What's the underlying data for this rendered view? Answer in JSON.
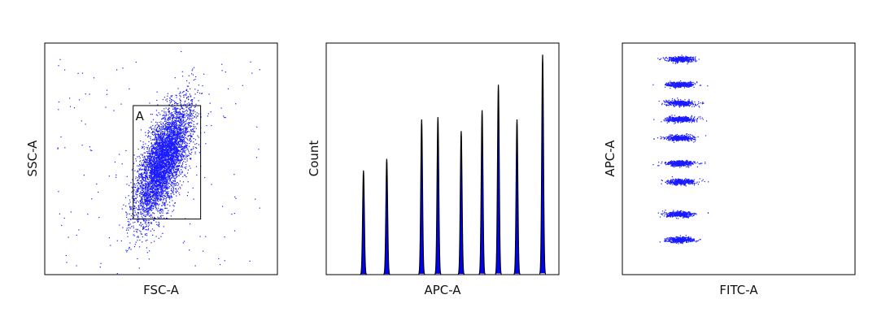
{
  "chart_data": [
    {
      "type": "scatter",
      "panel": "scatter-fsc-ssc",
      "xlabel": "FSC-A",
      "ylabel": "SSC-A",
      "title": "",
      "xlim": [
        0,
        100
      ],
      "ylim": [
        0,
        100
      ],
      "ticks": false,
      "colors": {
        "points": "#1a1aff",
        "gate": "#000000"
      },
      "population": {
        "center": [
          51,
          49
        ],
        "spread": [
          7.5,
          13
        ],
        "angle_deg": 70,
        "count": 5200
      },
      "background_events": 140,
      "gate": {
        "label": "A",
        "x": [
          38,
          67
        ],
        "y": [
          24,
          73
        ]
      }
    },
    {
      "type": "area",
      "panel": "histogram-apc",
      "xlabel": "APC-A",
      "ylabel": "Count",
      "title": "",
      "xlim": [
        0,
        100
      ],
      "ylim": [
        0,
        100
      ],
      "ticks": false,
      "colors": {
        "fill": "#0000ff",
        "outline": "#000000"
      },
      "peaks": [
        {
          "x": 16,
          "height": 45,
          "width": 0.45
        },
        {
          "x": 26,
          "height": 50,
          "width": 0.45
        },
        {
          "x": 41,
          "height": 67,
          "width": 0.45
        },
        {
          "x": 48,
          "height": 68,
          "width": 0.45
        },
        {
          "x": 58,
          "height": 62,
          "width": 0.45
        },
        {
          "x": 67,
          "height": 71,
          "width": 0.45
        },
        {
          "x": 74,
          "height": 82,
          "width": 0.45
        },
        {
          "x": 82,
          "height": 67,
          "width": 0.45
        },
        {
          "x": 93,
          "height": 95,
          "width": 0.45
        }
      ]
    },
    {
      "type": "scatter",
      "panel": "scatter-fitc-apc",
      "xlabel": "FITC-A",
      "ylabel": "APC-A",
      "title": "",
      "xlim": [
        0,
        100
      ],
      "ylim": [
        0,
        100
      ],
      "ticks": false,
      "colors": {
        "points": "#1a1aff"
      },
      "clusters": [
        {
          "x": 25,
          "y": 93,
          "count": 420
        },
        {
          "x": 25,
          "y": 82,
          "count": 420
        },
        {
          "x": 25,
          "y": 74,
          "count": 420
        },
        {
          "x": 25,
          "y": 67,
          "count": 420
        },
        {
          "x": 25,
          "y": 59,
          "count": 420
        },
        {
          "x": 25,
          "y": 48,
          "count": 420
        },
        {
          "x": 25,
          "y": 40,
          "count": 420
        },
        {
          "x": 25,
          "y": 26,
          "count": 420
        },
        {
          "x": 25,
          "y": 15,
          "count": 420
        }
      ],
      "cluster_spread": [
        3.0,
        1.3
      ]
    }
  ]
}
